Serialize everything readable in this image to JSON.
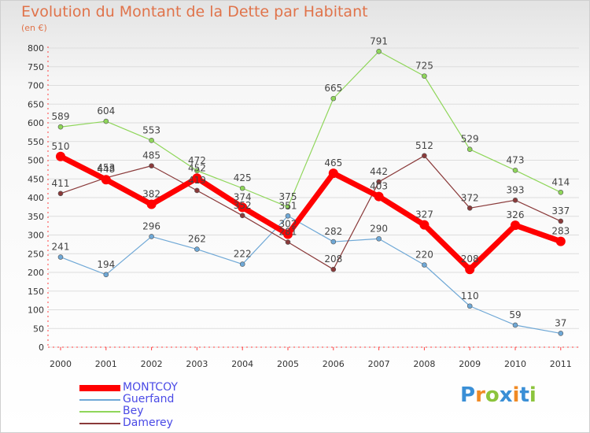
{
  "title": "Evolution du Montant de la Dette par Habitant",
  "subtitle": "(en €)",
  "colors": {
    "title": "#e0734a",
    "legend_text": "#4a4ae6",
    "axis": "#ff4040",
    "grid": "#dddddd",
    "label": "#444444"
  },
  "brand": {
    "letters": [
      "P",
      "r",
      "o",
      "x",
      "i",
      "t",
      "i"
    ],
    "colors": [
      "#3a8fd6",
      "#f08a24",
      "#8cc43c",
      "#3a8fd6",
      "#f08a24",
      "#3a8fd6",
      "#8cc43c"
    ]
  },
  "chart_data": {
    "type": "line",
    "x": [
      "2000",
      "2001",
      "2002",
      "2003",
      "2004",
      "2005",
      "2006",
      "2007",
      "2008",
      "2009",
      "2010",
      "2011"
    ],
    "ylim": [
      0,
      800
    ],
    "yticks": [
      "0",
      "50",
      "100",
      "150",
      "200",
      "250",
      "300",
      "350",
      "400",
      "450",
      "500",
      "550",
      "600",
      "650",
      "700",
      "750",
      "800"
    ],
    "grid": "horizontal",
    "legend_position": "bottom-left",
    "series": [
      {
        "name": "Bey",
        "color": "#8fd65a",
        "width": 1.2,
        "values": [
          589,
          604,
          553,
          472,
          425,
          375,
          665,
          791,
          725,
          529,
          473,
          414
        ],
        "labels": [
          "589",
          "604",
          "553",
          "472",
          "425",
          "375",
          "665",
          "791",
          "725",
          "529",
          "473",
          "414"
        ]
      },
      {
        "name": "Guerfand",
        "color": "#6fa8d6",
        "width": 1.2,
        "values": [
          241,
          194,
          296,
          262,
          222,
          351,
          282,
          290,
          220,
          110,
          59,
          37
        ],
        "labels": [
          "241",
          "194",
          "296",
          "262",
          "222",
          "351",
          "282",
          "290",
          "220",
          "110",
          "59",
          "37"
        ]
      },
      {
        "name": "Damerey",
        "color": "#8a3a3a",
        "width": 1.2,
        "values": [
          411,
          453,
          485,
          419,
          352,
          281,
          208,
          442,
          512,
          372,
          393,
          337
        ],
        "labels": [
          "411",
          "453",
          "485",
          "419",
          "352",
          "281",
          "208",
          "442",
          "512",
          "372",
          "393",
          "337"
        ]
      },
      {
        "name": "MONTCOY",
        "color": "#ff0000",
        "width": 7,
        "values": [
          510,
          448,
          382,
          452,
          374,
          302,
          465,
          403,
          327,
          208,
          326,
          283
        ],
        "labels": [
          "510",
          "448",
          "382",
          "452",
          "374",
          "302",
          "465",
          "403",
          "327",
          "208",
          "326",
          "283"
        ]
      }
    ],
    "legend_order": [
      "MONTCOY",
      "Guerfand",
      "Bey",
      "Damerey"
    ]
  }
}
